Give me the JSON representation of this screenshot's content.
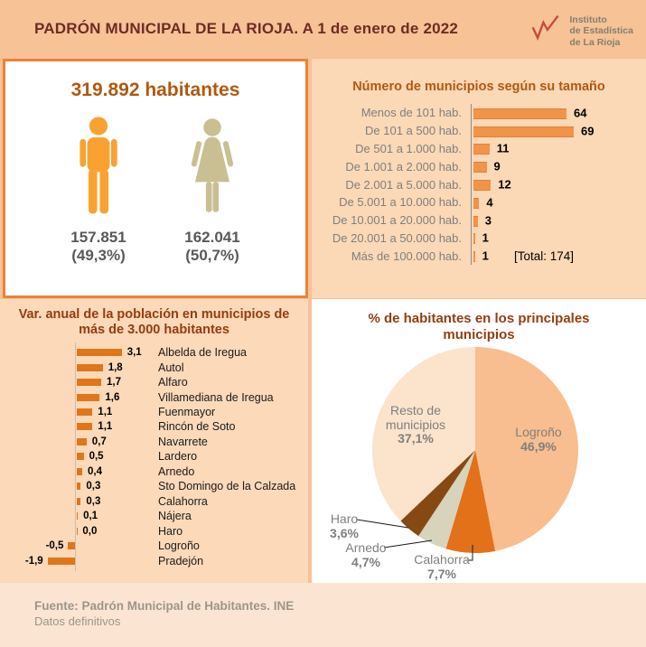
{
  "header": {
    "title": "PADRÓN MUNICIPAL DE LA RIOJA. A 1 de enero de 2022",
    "logo": {
      "icon": "line-chart-icon",
      "lines": [
        "Instituto",
        "de Estadística",
        "de La Rioja"
      ]
    }
  },
  "population": {
    "total": "319.892 habitantes",
    "male": {
      "count": "157.851",
      "pct": "(49,3%)"
    },
    "female": {
      "count": "162.041",
      "pct": "(50,7%)"
    }
  },
  "chart_data": [
    {
      "id": "municipios-por-tamano",
      "type": "bar",
      "orientation": "horizontal",
      "title": "Número de municipios según su tamaño",
      "categories": [
        "Menos de 101 hab.",
        "De 101 a 500 hab.",
        "De 501 a 1.000 hab.",
        "De 1.001 a 2.000 hab.",
        "De 2.001 a 5.000 hab.",
        "De 5.001 a 10.000 hab.",
        "De 10.001 a 20.000 hab.",
        "De 20.001 a 50.000 hab.",
        "Más de 100.000 hab."
      ],
      "values": [
        64,
        69,
        11,
        9,
        12,
        4,
        3,
        1,
        1
      ],
      "total_label": "[Total: 174]",
      "xlim": [
        0,
        69
      ],
      "grid": false,
      "bar_color": "#F0944A"
    },
    {
      "id": "variacion-anual",
      "type": "bar",
      "orientation": "horizontal",
      "title": "Var. anual  de la población en municipios de más de 3.000 habitantes",
      "categories": [
        "Albelda de Iregua",
        "Autol",
        "Alfaro",
        "Villamediana de Iregua",
        "Fuenmayor",
        "Rincón de Soto",
        "Navarrete",
        "Lardero",
        "Arnedo",
        "Sto Domingo de la Calzada",
        "Calahorra",
        "Nájera",
        "Haro",
        "Logroño",
        "Pradejón"
      ],
      "values": [
        3.1,
        1.8,
        1.7,
        1.6,
        1.1,
        1.1,
        0.7,
        0.5,
        0.4,
        0.3,
        0.3,
        0.1,
        0.0,
        -0.5,
        -1.9
      ],
      "value_labels": [
        "3,1",
        "1,8",
        "1,7",
        "1,6",
        "1,1",
        "1,1",
        "0,7",
        "0,5",
        "0,4",
        "0,3",
        "0,3",
        "0,1",
        "0,0",
        "-0,5",
        "-1,9"
      ],
      "xlim": [
        -1.9,
        3.1
      ],
      "grid": false,
      "bar_color": "#E0761B"
    },
    {
      "id": "pct-habitantes",
      "type": "pie",
      "title": "% de habitantes en los principales municipios",
      "start_angle_deg": 0,
      "direction": "clockwise",
      "slices": [
        {
          "name": "Logroño",
          "value": 46.9,
          "label": "46,9%",
          "color": "#F8BE8F"
        },
        {
          "name": "Calahorra",
          "value": 7.7,
          "label": "7,7%",
          "color": "#E2711A"
        },
        {
          "name": "Arnedo",
          "value": 4.7,
          "label": "4,7%",
          "color": "#D8D3BB"
        },
        {
          "name": "Haro",
          "value": 3.6,
          "label": "3,6%",
          "color": "#864912"
        },
        {
          "name": "Resto de municipios",
          "value": 37.1,
          "label": "37,1%",
          "color": "#FBE3CC"
        }
      ]
    }
  ],
  "footer": {
    "source": "Fuente: Padrón Municipal de Habitantes. INE",
    "note": "Datos definitivos"
  },
  "colors": {
    "page_bg": "#F6C296",
    "panel_peach_bg": "#FBD8B6",
    "footer_bg": "#FBE5D2",
    "panel_border_orange": "#E8833C",
    "header_title": "#6F2B24",
    "accent_title_orange": "#B0590F",
    "accent_title_red": "#943D10",
    "male_icon": "#F9A232",
    "female_icon": "#C9BF92",
    "gray_text": "#595959",
    "logo_red": "#C64A3F"
  }
}
